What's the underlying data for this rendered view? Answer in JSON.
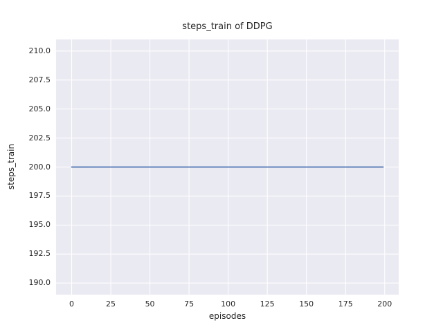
{
  "chart_data": {
    "type": "line",
    "title": "steps_train of DDPG",
    "xlabel": "episodes",
    "ylabel": "steps_train",
    "xlim": [
      -9.95,
      208.95
    ],
    "ylim": [
      189.0,
      211.0
    ],
    "x_ticks": {
      "values": [
        0,
        25,
        50,
        75,
        100,
        125,
        150,
        175,
        200
      ],
      "labels": [
        "0",
        "25",
        "50",
        "75",
        "100",
        "125",
        "150",
        "175",
        "200"
      ]
    },
    "y_ticks": {
      "values": [
        190.0,
        192.5,
        195.0,
        197.5,
        200.0,
        202.5,
        205.0,
        207.5,
        210.0
      ],
      "labels": [
        "190.0",
        "192.5",
        "195.0",
        "197.5",
        "200.0",
        "202.5",
        "205.0",
        "207.5",
        "210.0"
      ]
    },
    "grid": true,
    "legend": "none",
    "series": [
      {
        "name": "steps_train",
        "color": "#4c72b0",
        "x": [
          0,
          199
        ],
        "y": [
          200,
          200
        ]
      }
    ],
    "colors": {
      "figure_background": "#ffffff",
      "axes_background": "#eaeaf2",
      "grid_color": "#ffffff",
      "text_color": "#262626",
      "line_color": "#4c72b0"
    }
  }
}
